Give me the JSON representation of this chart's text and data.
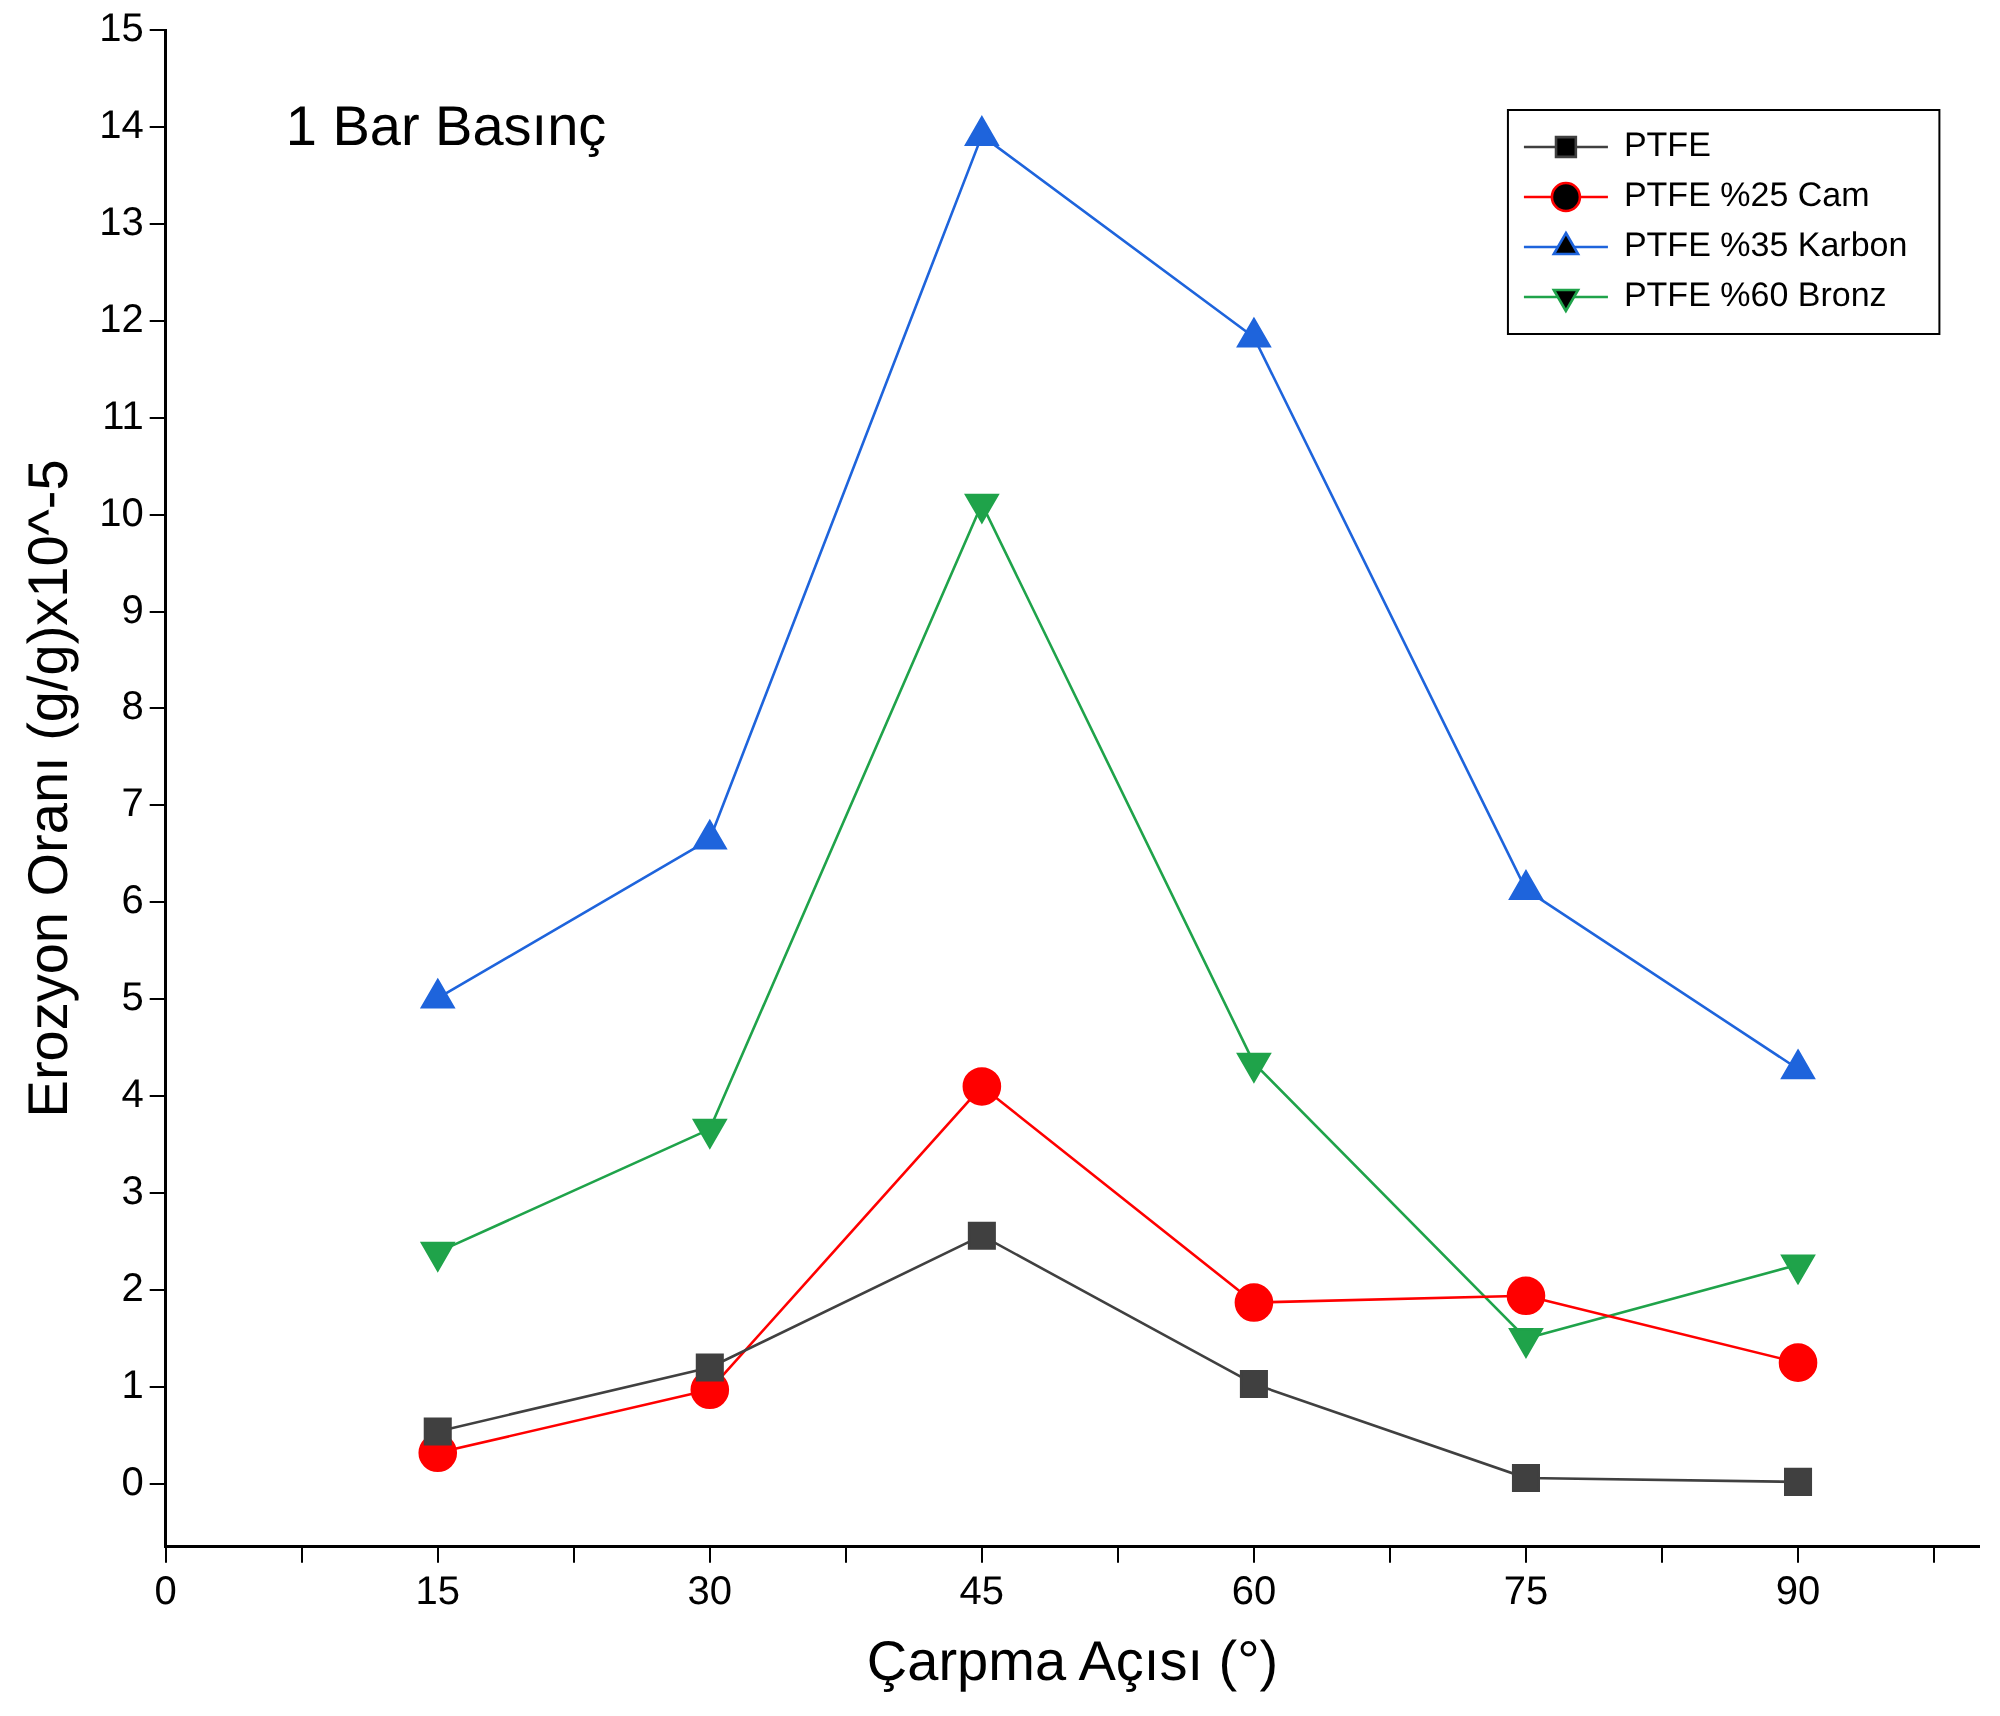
{
  "chart_data": {
    "type": "line",
    "xlabel": "Çarpma Açısı (°)",
    "ylabel": "Erozyon Oranı (g/g)x10^-5",
    "annotations": [
      "1 Bar Basınç"
    ],
    "x": [
      15,
      30,
      45,
      60,
      75,
      90
    ],
    "series": [
      {
        "name": "PTFE",
        "color": "#404040",
        "marker": "square",
        "values": [
          0.54,
          1.2,
          2.56,
          1.03,
          0.06,
          0.02
        ]
      },
      {
        "name": "PTFE %25 Cam",
        "color": "#ff0000",
        "marker": "circle",
        "values": [
          0.32,
          0.97,
          4.1,
          1.87,
          1.94,
          1.25
        ]
      },
      {
        "name": "PTFE %35 Karbon",
        "color": "#1e64dc",
        "marker": "triangle",
        "values": [
          5.01,
          6.65,
          13.91,
          11.83,
          6.13,
          4.28
        ]
      },
      {
        "name": "PTFE %60 Bronz",
        "color": "#1fa34a",
        "marker": "triangle_down",
        "values": [
          2.39,
          3.66,
          10.11,
          4.34,
          1.5,
          2.26
        ]
      }
    ],
    "xlim": [
      0,
      100
    ],
    "xticks": [
      0,
      {
        "value": 7.5,
        "label": null
      },
      15,
      {
        "value": 22.5,
        "label": null
      },
      30,
      {
        "value": 37.5,
        "label": null
      },
      45,
      {
        "value": 52.5,
        "label": null
      },
      60,
      {
        "value": 67.5,
        "label": null
      },
      75,
      {
        "value": 82.5,
        "label": null
      },
      90,
      {
        "value": 97.5,
        "label": null
      }
    ],
    "ylim": [
      -0.65,
      15
    ],
    "yticks": [
      0,
      1,
      2,
      3,
      4,
      5,
      6,
      7,
      8,
      9,
      10,
      11,
      12,
      13,
      14,
      15
    ],
    "grid": false,
    "legend": "top right",
    "line_style": "solid"
  }
}
